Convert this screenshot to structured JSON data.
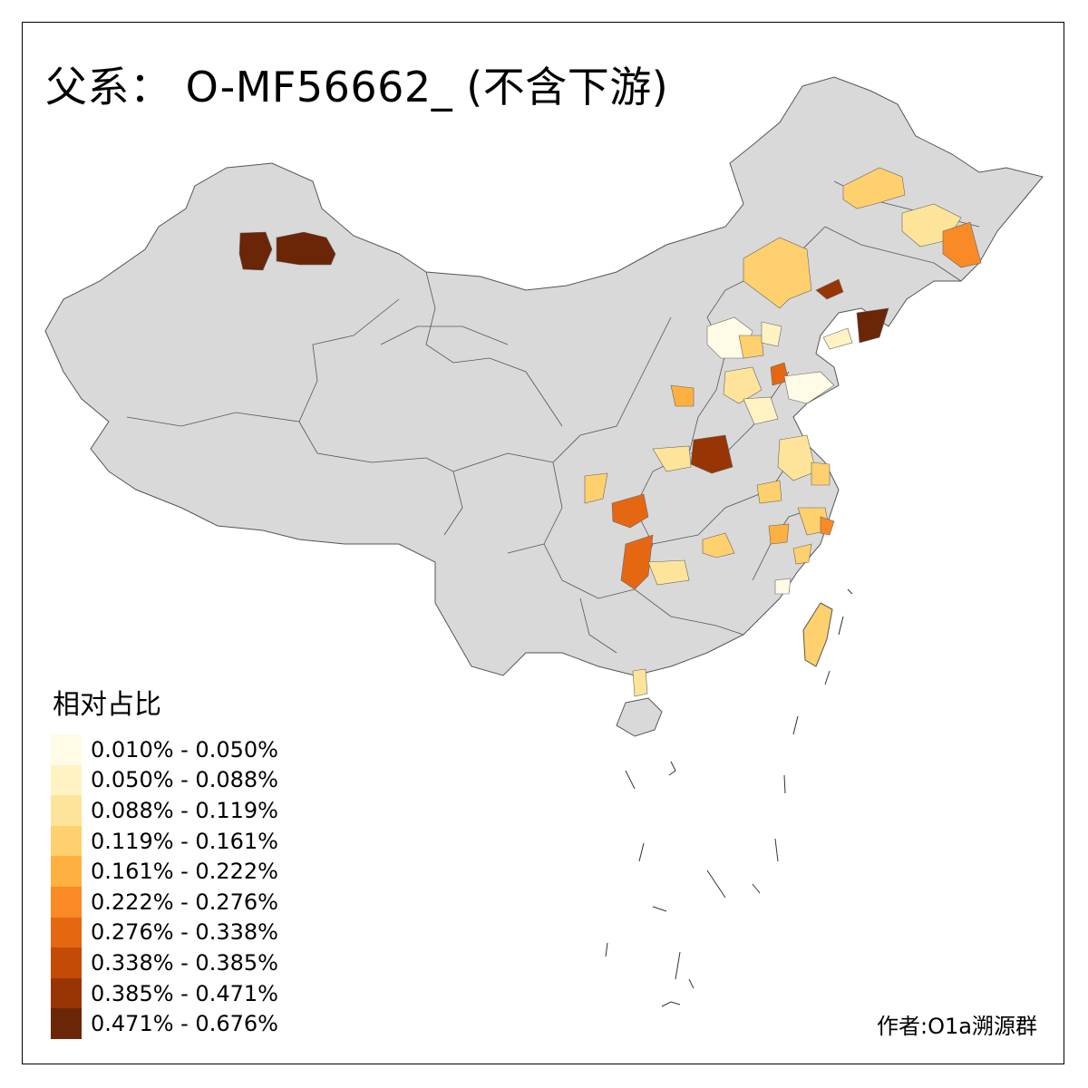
{
  "title": "父系： O-MF56662_ (不含下游)",
  "legend": {
    "title": "相对占比",
    "items": [
      {
        "label": "0.010% - 0.050%",
        "color": "#fffbe6"
      },
      {
        "label": "0.050% - 0.088%",
        "color": "#fff3c4"
      },
      {
        "label": "0.088% - 0.119%",
        "color": "#fee49a"
      },
      {
        "label": "0.119% - 0.161%",
        "color": "#fed06e"
      },
      {
        "label": "0.161% - 0.222%",
        "color": "#feb140"
      },
      {
        "label": "0.222% - 0.276%",
        "color": "#f98a25"
      },
      {
        "label": "0.276% - 0.338%",
        "color": "#e56712"
      },
      {
        "label": "0.338% - 0.385%",
        "color": "#c44b06"
      },
      {
        "label": "0.385% - 0.471%",
        "color": "#983505"
      },
      {
        "label": "0.471% - 0.676%",
        "color": "#6b2507"
      }
    ]
  },
  "author": "作者:O1a溯源群",
  "colors": {
    "base_region": "#d9d9d9",
    "border": "#555555",
    "background": "#ffffff"
  }
}
